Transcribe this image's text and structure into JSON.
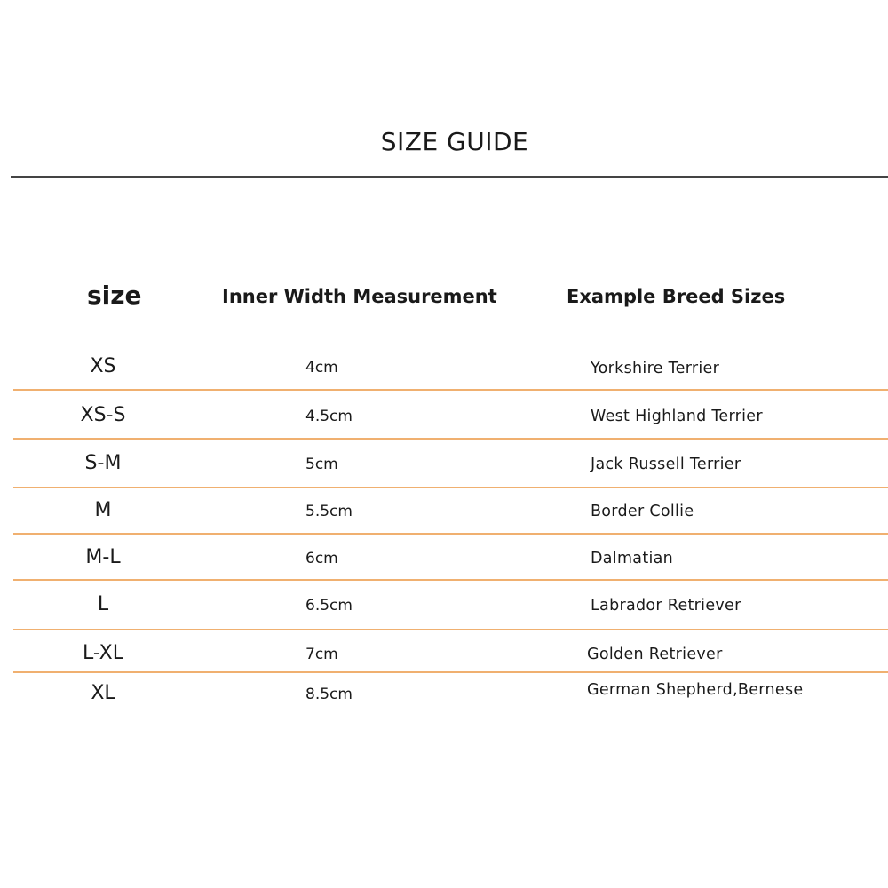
{
  "title": "SIZE GUIDE",
  "headers": {
    "size": "size",
    "width": "Inner Width Measurement",
    "breed": "Example Breed Sizes"
  },
  "accent_color": "#f0b070",
  "rows": [
    {
      "size": "XS",
      "width": "4cm",
      "breed": "Yorkshire Terrier"
    },
    {
      "size": "XS-S",
      "width": "4.5cm",
      "breed": "West Highland Terrier"
    },
    {
      "size": "S-M",
      "width": "5cm",
      "breed": "Jack Russell Terrier"
    },
    {
      "size": "M",
      "width": "5.5cm",
      "breed": "Border Collie"
    },
    {
      "size": "M-L",
      "width": "6cm",
      "breed": "Dalmatian"
    },
    {
      "size": "L",
      "width": "6.5cm",
      "breed": "Labrador Retriever"
    },
    {
      "size": "L-XL",
      "width": "7cm",
      "breed": "Golden Retriever"
    },
    {
      "size": "XL",
      "width": "8.5cm",
      "breed": "German Shepherd,Bernese"
    }
  ]
}
